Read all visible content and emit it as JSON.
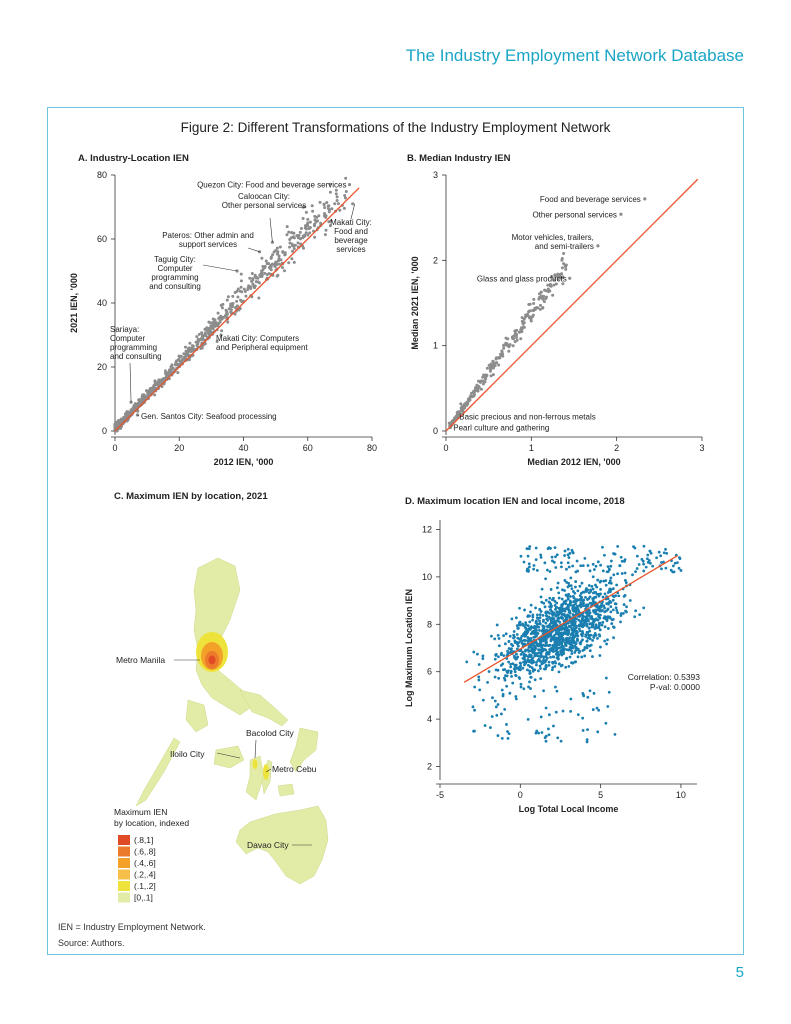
{
  "header": {
    "title": "The Industry Employment Network Database"
  },
  "figure": {
    "title": "Figure 2: Different Transformations of the Industry Employment Network",
    "footnote": "IEN = Industry Employment Network.",
    "source": "Source: Authors."
  },
  "page_number": "5",
  "colors": {
    "accent": "#1aa5c5",
    "scatter_gray": "#8c8c8c",
    "scatter_blue": "#1a7fb0",
    "fit_line": "#e8542a"
  },
  "chart_data": [
    {
      "id": "A",
      "type": "scatter",
      "title": "A. Industry-Location IEN",
      "xlabel": "2012 IEN, '000",
      "ylabel": "2021 IEN, '000",
      "xlim": [
        0,
        80
      ],
      "ylim": [
        0,
        80
      ],
      "xticks": [
        "0",
        "20",
        "40",
        "60",
        "80"
      ],
      "yticks": [
        "0",
        "20",
        "40",
        "60",
        "80"
      ],
      "reference_line": [
        [
          0,
          0
        ],
        [
          76,
          76
        ]
      ],
      "points_description": "dense band of gray points near y = 1.05x from 0 to 75",
      "annotations": [
        {
          "text": [
            "Quezon City: Food and beverage services"
          ],
          "x": 73,
          "y": 77
        },
        {
          "text": [
            "Caloocan City:",
            "Other personal services"
          ],
          "x": 49,
          "y": 59
        },
        {
          "text": [
            "Makati City:",
            "Food and",
            "beverage",
            "services"
          ],
          "x": 74,
          "y": 71
        },
        {
          "text": [
            "Pateros: Other admin and",
            "support services"
          ],
          "x": 45,
          "y": 56
        },
        {
          "text": [
            "Taguig City:",
            "Computer",
            "programming",
            "and consulting"
          ],
          "x": 38,
          "y": 50
        },
        {
          "text": [
            "Makati City: Computers",
            "and Peripheral equipment"
          ],
          "x": 33,
          "y": 30
        },
        {
          "text": [
            "Sariaya:",
            "Computer",
            "programming",
            "and consulting"
          ],
          "x": 5,
          "y": 12
        },
        {
          "text": [
            "Gen. Santos City: Seafood processing"
          ],
          "x": 7,
          "y": 5
        }
      ]
    },
    {
      "id": "B",
      "type": "scatter",
      "title": "B. Median Industry IEN",
      "xlabel": "Median 2012 IEN, '000",
      "ylabel": "Median 2021 IEN, '000",
      "xlim": [
        0,
        3
      ],
      "ylim": [
        0,
        3
      ],
      "xticks": [
        "0",
        "1",
        "2",
        "3"
      ],
      "yticks": [
        "0",
        "1",
        "2",
        "3"
      ],
      "reference_line": [
        [
          0,
          0
        ],
        [
          2.95,
          2.95
        ]
      ],
      "points_description": "gray points along y = 1.4x from 0 to 1.45",
      "annotations": [
        {
          "text": [
            "Food and beverage services"
          ],
          "x": 2.33,
          "y": 2.72
        },
        {
          "text": [
            "Other personal services"
          ],
          "x": 2.05,
          "y": 2.54
        },
        {
          "text": [
            "Motor vehicles, trailers,",
            "and semi-trailers"
          ],
          "x": 1.78,
          "y": 2.17
        },
        {
          "text": [
            "Glass and glass products"
          ],
          "x": 1.45,
          "y": 1.79
        },
        {
          "text": [
            "Basic precious and non-ferrous metals"
          ],
          "x": 0.12,
          "y": 0.17
        },
        {
          "text": [
            "Pearl culture and gathering"
          ],
          "x": 0.05,
          "y": 0.04
        }
      ]
    },
    {
      "id": "C",
      "type": "map",
      "title": "C. Maximum IEN by location, 2021",
      "legend_title": [
        "Maximum IEN",
        "by location, indexed"
      ],
      "legend": [
        {
          "label": "(.8,1]",
          "color": "#e04b26"
        },
        {
          "label": "(.6,.8]",
          "color": "#ec7a2b"
        },
        {
          "label": "(.4,.6]",
          "color": "#f3a128"
        },
        {
          "label": "(.2,.4]",
          "color": "#f6bf4a"
        },
        {
          "label": "(.1,.2]",
          "color": "#eee33a"
        },
        {
          "label": "[0,.1]",
          "color": "#e2eca7"
        }
      ],
      "labels": [
        "Metro Manila",
        "Bacolod City",
        "Iloilo City",
        "Metro Cebu",
        "Davao City"
      ]
    },
    {
      "id": "D",
      "type": "scatter",
      "title": "D. Maximum location IEN and local income, 2018",
      "xlabel": "Log Total Local Income",
      "ylabel": "Log Maximum Location IEN",
      "xlim": [
        -5,
        11
      ],
      "ylim": [
        1.6,
        12.4
      ],
      "xticks": [
        -5,
        0,
        5,
        10
      ],
      "yticks": [
        2,
        4,
        6,
        8,
        10,
        12
      ],
      "fit_line": [
        [
          -3.5,
          5.55
        ],
        [
          9.8,
          10.9
        ]
      ],
      "stats": [
        "Correlation: 0.5393",
        "P-val: 0.0000"
      ],
      "points_description": "blue cloud centered near (2.5, 7.8)"
    }
  ]
}
